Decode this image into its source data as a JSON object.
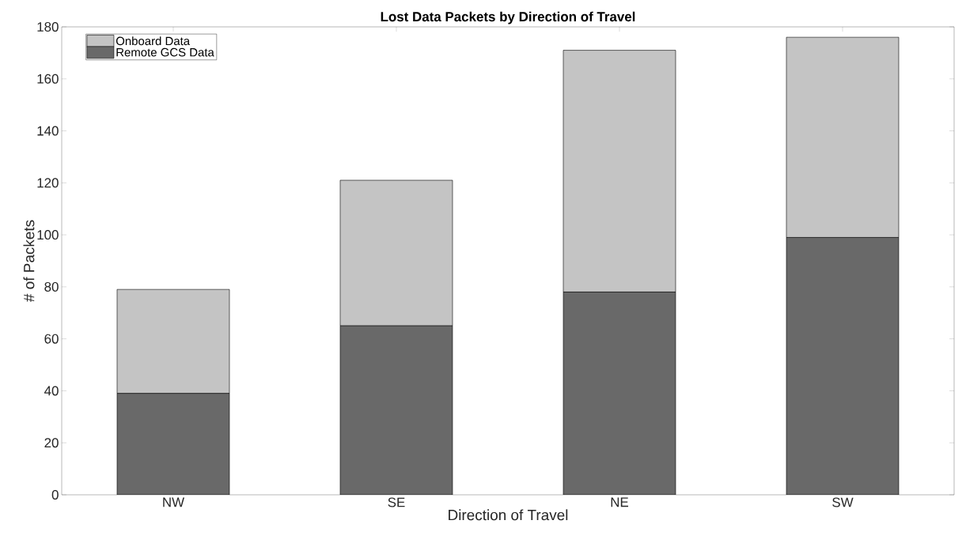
{
  "chart_data": {
    "type": "bar",
    "title": "Lost Data Packets by Direction of Travel",
    "xlabel": "Direction of Travel",
    "ylabel": "# of Packets",
    "categories": [
      "NW",
      "SE",
      "NE",
      "SW"
    ],
    "series": [
      {
        "name": "Remote GCS Data",
        "color": "#696969",
        "values": [
          39,
          65,
          78,
          99
        ]
      },
      {
        "name": "Onboard Data",
        "color": "#c4c4c4",
        "values": [
          40,
          56,
          93,
          77
        ]
      }
    ],
    "stacked": true,
    "ylim": [
      0,
      180
    ],
    "yticks": [
      0,
      20,
      40,
      60,
      80,
      100,
      120,
      140,
      160,
      180
    ],
    "grid": false,
    "legend": "top left"
  }
}
